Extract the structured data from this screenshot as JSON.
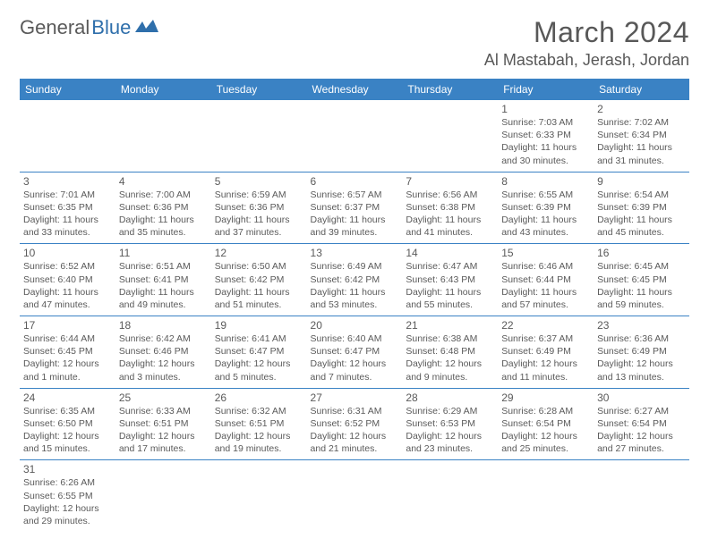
{
  "brand": {
    "part1": "General",
    "part2": "Blue"
  },
  "title": "March 2024",
  "location": "Al Mastabah, Jerash, Jordan",
  "colors": {
    "header_bg": "#3a82c4",
    "header_text": "#ffffff",
    "text": "#5a5a5a",
    "border": "#3a82c4",
    "background": "#ffffff"
  },
  "typography": {
    "title_fontsize": 32,
    "location_fontsize": 18,
    "dayhead_fontsize": 12,
    "cell_fontsize": 10.5
  },
  "day_headers": [
    "Sunday",
    "Monday",
    "Tuesday",
    "Wednesday",
    "Thursday",
    "Friday",
    "Saturday"
  ],
  "weeks": [
    [
      null,
      null,
      null,
      null,
      null,
      {
        "n": "1",
        "sr": "Sunrise: 7:03 AM",
        "ss": "Sunset: 6:33 PM",
        "dl": "Daylight: 11 hours and 30 minutes."
      },
      {
        "n": "2",
        "sr": "Sunrise: 7:02 AM",
        "ss": "Sunset: 6:34 PM",
        "dl": "Daylight: 11 hours and 31 minutes."
      }
    ],
    [
      {
        "n": "3",
        "sr": "Sunrise: 7:01 AM",
        "ss": "Sunset: 6:35 PM",
        "dl": "Daylight: 11 hours and 33 minutes."
      },
      {
        "n": "4",
        "sr": "Sunrise: 7:00 AM",
        "ss": "Sunset: 6:36 PM",
        "dl": "Daylight: 11 hours and 35 minutes."
      },
      {
        "n": "5",
        "sr": "Sunrise: 6:59 AM",
        "ss": "Sunset: 6:36 PM",
        "dl": "Daylight: 11 hours and 37 minutes."
      },
      {
        "n": "6",
        "sr": "Sunrise: 6:57 AM",
        "ss": "Sunset: 6:37 PM",
        "dl": "Daylight: 11 hours and 39 minutes."
      },
      {
        "n": "7",
        "sr": "Sunrise: 6:56 AM",
        "ss": "Sunset: 6:38 PM",
        "dl": "Daylight: 11 hours and 41 minutes."
      },
      {
        "n": "8",
        "sr": "Sunrise: 6:55 AM",
        "ss": "Sunset: 6:39 PM",
        "dl": "Daylight: 11 hours and 43 minutes."
      },
      {
        "n": "9",
        "sr": "Sunrise: 6:54 AM",
        "ss": "Sunset: 6:39 PM",
        "dl": "Daylight: 11 hours and 45 minutes."
      }
    ],
    [
      {
        "n": "10",
        "sr": "Sunrise: 6:52 AM",
        "ss": "Sunset: 6:40 PM",
        "dl": "Daylight: 11 hours and 47 minutes."
      },
      {
        "n": "11",
        "sr": "Sunrise: 6:51 AM",
        "ss": "Sunset: 6:41 PM",
        "dl": "Daylight: 11 hours and 49 minutes."
      },
      {
        "n": "12",
        "sr": "Sunrise: 6:50 AM",
        "ss": "Sunset: 6:42 PM",
        "dl": "Daylight: 11 hours and 51 minutes."
      },
      {
        "n": "13",
        "sr": "Sunrise: 6:49 AM",
        "ss": "Sunset: 6:42 PM",
        "dl": "Daylight: 11 hours and 53 minutes."
      },
      {
        "n": "14",
        "sr": "Sunrise: 6:47 AM",
        "ss": "Sunset: 6:43 PM",
        "dl": "Daylight: 11 hours and 55 minutes."
      },
      {
        "n": "15",
        "sr": "Sunrise: 6:46 AM",
        "ss": "Sunset: 6:44 PM",
        "dl": "Daylight: 11 hours and 57 minutes."
      },
      {
        "n": "16",
        "sr": "Sunrise: 6:45 AM",
        "ss": "Sunset: 6:45 PM",
        "dl": "Daylight: 11 hours and 59 minutes."
      }
    ],
    [
      {
        "n": "17",
        "sr": "Sunrise: 6:44 AM",
        "ss": "Sunset: 6:45 PM",
        "dl": "Daylight: 12 hours and 1 minute."
      },
      {
        "n": "18",
        "sr": "Sunrise: 6:42 AM",
        "ss": "Sunset: 6:46 PM",
        "dl": "Daylight: 12 hours and 3 minutes."
      },
      {
        "n": "19",
        "sr": "Sunrise: 6:41 AM",
        "ss": "Sunset: 6:47 PM",
        "dl": "Daylight: 12 hours and 5 minutes."
      },
      {
        "n": "20",
        "sr": "Sunrise: 6:40 AM",
        "ss": "Sunset: 6:47 PM",
        "dl": "Daylight: 12 hours and 7 minutes."
      },
      {
        "n": "21",
        "sr": "Sunrise: 6:38 AM",
        "ss": "Sunset: 6:48 PM",
        "dl": "Daylight: 12 hours and 9 minutes."
      },
      {
        "n": "22",
        "sr": "Sunrise: 6:37 AM",
        "ss": "Sunset: 6:49 PM",
        "dl": "Daylight: 12 hours and 11 minutes."
      },
      {
        "n": "23",
        "sr": "Sunrise: 6:36 AM",
        "ss": "Sunset: 6:49 PM",
        "dl": "Daylight: 12 hours and 13 minutes."
      }
    ],
    [
      {
        "n": "24",
        "sr": "Sunrise: 6:35 AM",
        "ss": "Sunset: 6:50 PM",
        "dl": "Daylight: 12 hours and 15 minutes."
      },
      {
        "n": "25",
        "sr": "Sunrise: 6:33 AM",
        "ss": "Sunset: 6:51 PM",
        "dl": "Daylight: 12 hours and 17 minutes."
      },
      {
        "n": "26",
        "sr": "Sunrise: 6:32 AM",
        "ss": "Sunset: 6:51 PM",
        "dl": "Daylight: 12 hours and 19 minutes."
      },
      {
        "n": "27",
        "sr": "Sunrise: 6:31 AM",
        "ss": "Sunset: 6:52 PM",
        "dl": "Daylight: 12 hours and 21 minutes."
      },
      {
        "n": "28",
        "sr": "Sunrise: 6:29 AM",
        "ss": "Sunset: 6:53 PM",
        "dl": "Daylight: 12 hours and 23 minutes."
      },
      {
        "n": "29",
        "sr": "Sunrise: 6:28 AM",
        "ss": "Sunset: 6:54 PM",
        "dl": "Daylight: 12 hours and 25 minutes."
      },
      {
        "n": "30",
        "sr": "Sunrise: 6:27 AM",
        "ss": "Sunset: 6:54 PM",
        "dl": "Daylight: 12 hours and 27 minutes."
      }
    ],
    [
      {
        "n": "31",
        "sr": "Sunrise: 6:26 AM",
        "ss": "Sunset: 6:55 PM",
        "dl": "Daylight: 12 hours and 29 minutes."
      },
      null,
      null,
      null,
      null,
      null,
      null
    ]
  ]
}
